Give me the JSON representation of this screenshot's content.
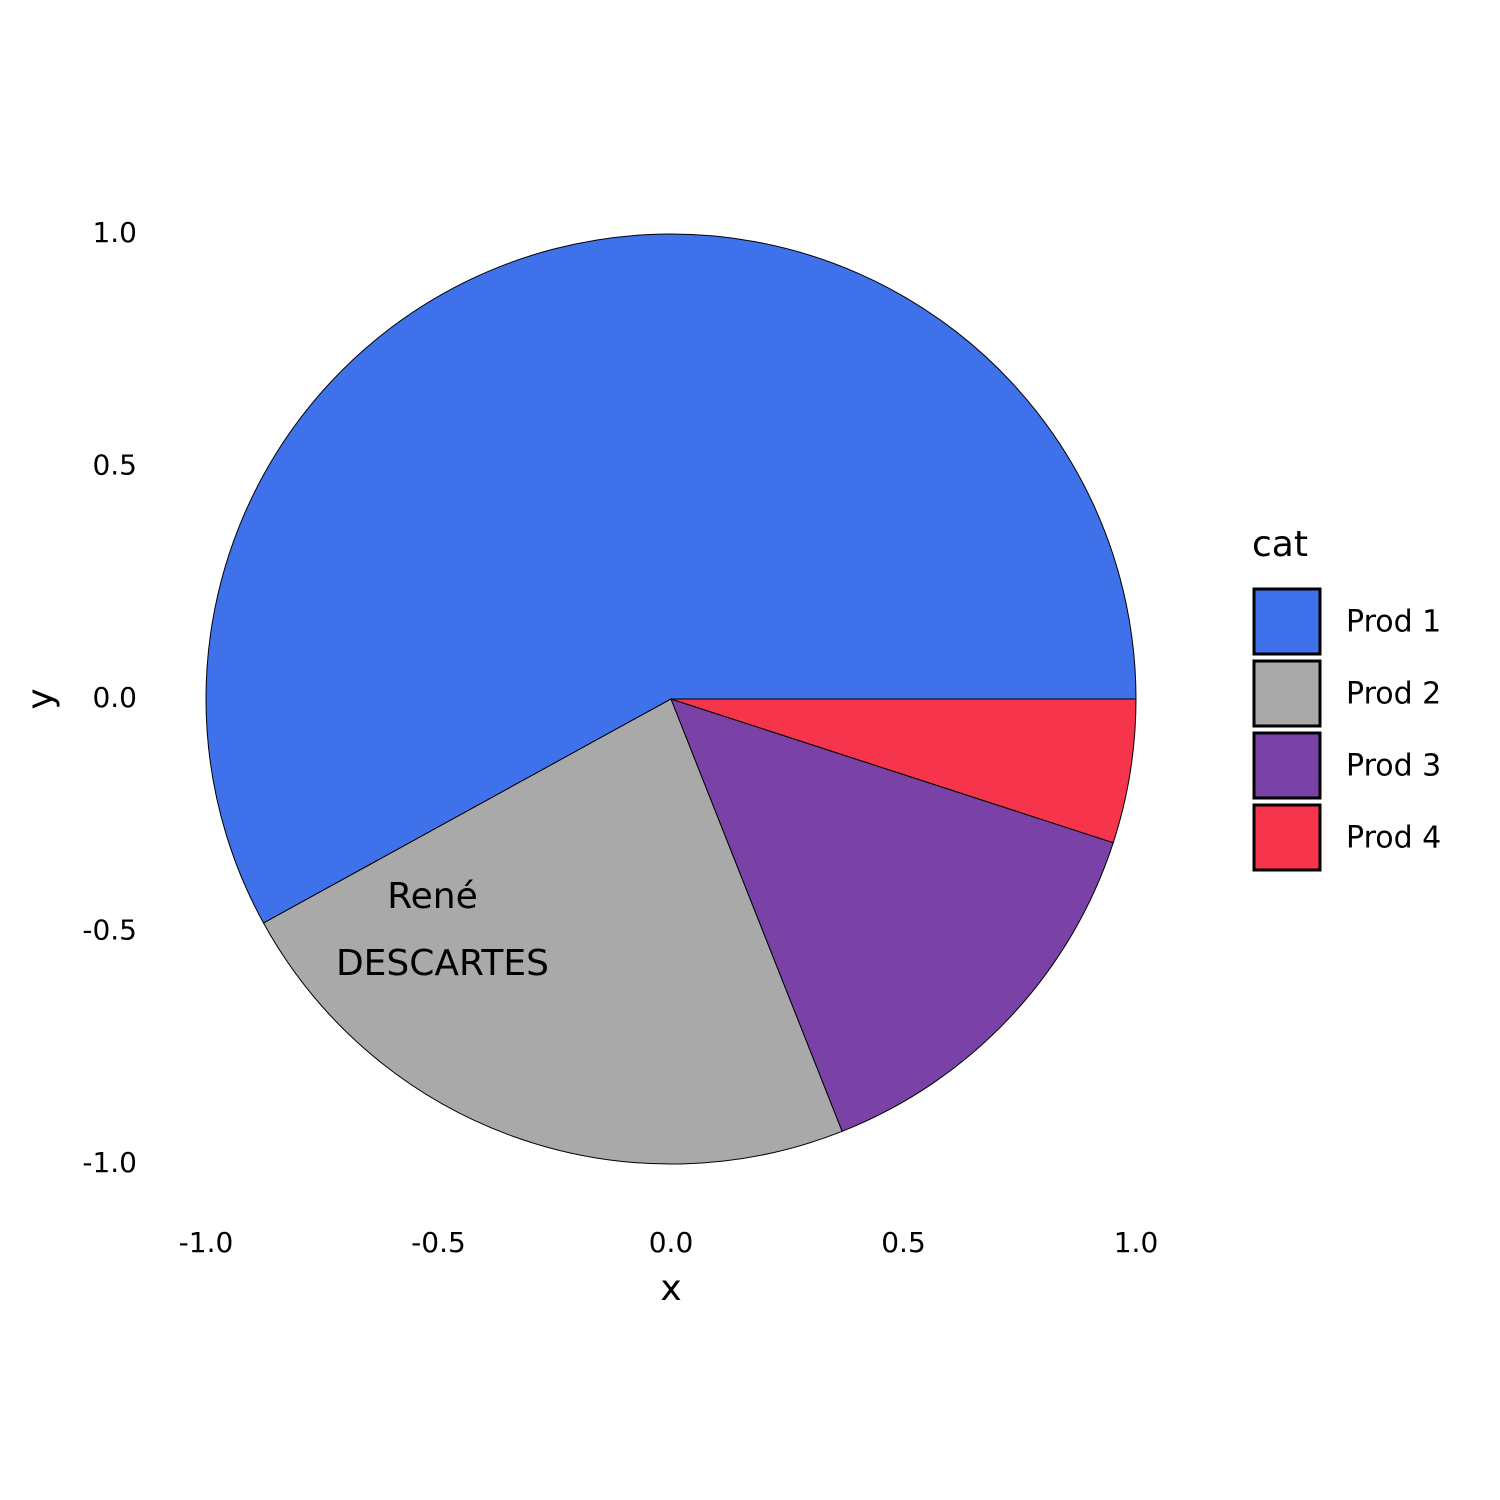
{
  "chart_data": {
    "type": "pie",
    "categories": [
      "Prod 1",
      "Prod 2",
      "Prod 3",
      "Prod 4"
    ],
    "values": [
      58,
      23,
      14,
      5
    ],
    "colors": [
      "#3f72ea",
      "#a9a9a9",
      "#7a42a6",
      "#f6344b"
    ],
    "xlabel": "x",
    "ylabel": "y",
    "xlim": [
      -1.1,
      1.1
    ],
    "ylim": [
      -1.1,
      1.1
    ],
    "xticks": [
      {
        "value": -1,
        "label": "-1.0"
      },
      -0.5,
      {
        "value": 0,
        "label": "0.0"
      },
      0.5,
      {
        "value": 1,
        "label": "1.0"
      }
    ],
    "yticks": [
      {
        "value": -1,
        "label": "-1.0"
      },
      -0.5,
      {
        "value": 0,
        "label": "0.0"
      },
      0.5,
      {
        "value": 1,
        "label": "1.0"
      }
    ],
    "legend": {
      "title": "cat",
      "position": "right"
    },
    "annotations": [
      {
        "x": -0.5,
        "y": -0.5,
        "lines": [
          "René",
          "DESCARTES"
        ]
      }
    ]
  }
}
